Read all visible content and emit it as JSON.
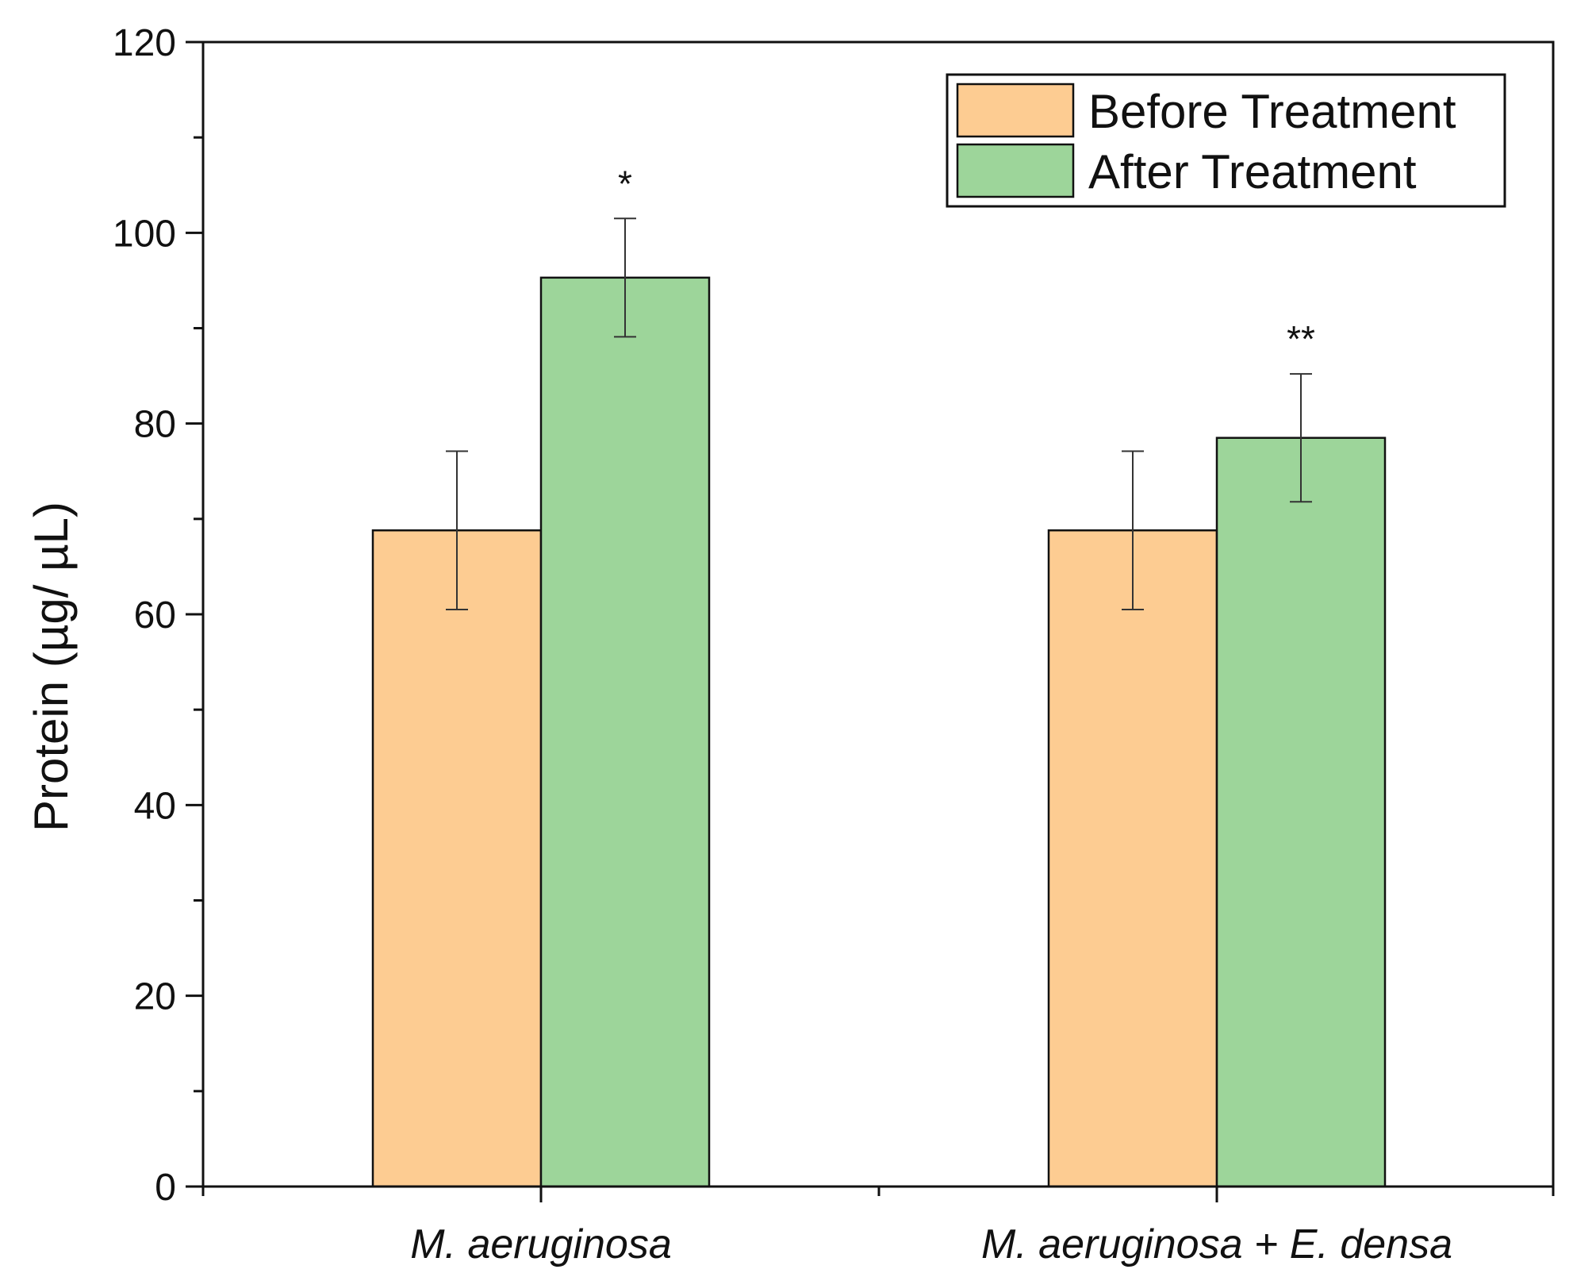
{
  "chart_data": {
    "type": "bar",
    "title": "",
    "xlabel": "",
    "ylabel": "Protein (µg/ µL)",
    "ylim": [
      0,
      120
    ],
    "yticks": [
      0,
      20,
      40,
      60,
      80,
      100,
      120
    ],
    "grid": false,
    "legend_position": "top-right",
    "categories": [
      "M. aeruginosa",
      "M. aeruginosa + E. densa"
    ],
    "series": [
      {
        "name": "Before Treatment",
        "color": "#FDCC92",
        "values": [
          68.8,
          68.8
        ],
        "errors": [
          8.3,
          8.3
        ]
      },
      {
        "name": "After Treatment",
        "color": "#9DD59A",
        "values": [
          95.3,
          78.5
        ],
        "errors": [
          6.2,
          6.7
        ]
      }
    ],
    "annotations": [
      "*",
      "**"
    ]
  }
}
